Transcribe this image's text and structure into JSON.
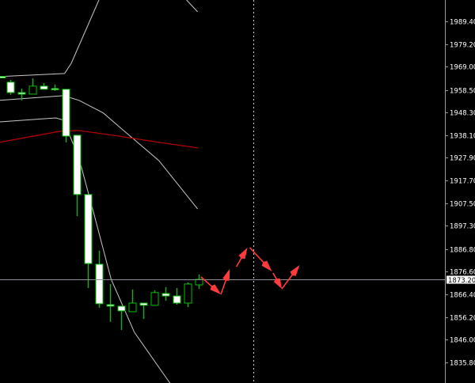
{
  "chart_data": {
    "type": "candlestick",
    "title": "",
    "ylim": [
      1826.5,
      1999.0
    ],
    "y_ticks": [
      "1989.40",
      "1979.20",
      "1969.00",
      "1958.50",
      "1948.30",
      "1938.10",
      "1927.90",
      "1917.70",
      "1907.50",
      "1897.30",
      "1886.80",
      "1876.60",
      "1866.40",
      "1856.20",
      "1846.00",
      "1835.80"
    ],
    "current_price": "1873.20",
    "colors": {
      "background": "#000000",
      "candle_outline": "#00c000",
      "bear_body": "#ffffff",
      "bull_body": "#000000",
      "bands": "#c8c8c8",
      "ma": "#b00000",
      "arrows": "#ff3b3b",
      "grid_line": "#8a8f99",
      "axis_text": "#ffffff"
    },
    "candles": [
      {
        "bar": -0.8,
        "o": 1964.6,
        "h": 1964.6,
        "l": 1963.8,
        "c": 1963.9
      },
      {
        "bar": 0,
        "o": 1962.0,
        "h": 1963.0,
        "l": 1956.3,
        "c": 1957.3
      },
      {
        "bar": 1,
        "o": 1957.3,
        "h": 1959.1,
        "l": 1953.8,
        "c": 1956.6
      },
      {
        "bar": 2,
        "o": 1956.6,
        "h": 1963.7,
        "l": 1956.6,
        "c": 1960.2
      },
      {
        "bar": 3,
        "o": 1960.2,
        "h": 1961.6,
        "l": 1958.8,
        "c": 1958.8
      },
      {
        "bar": 4,
        "o": 1959.1,
        "h": 1960.9,
        "l": 1958.0,
        "c": 1958.8
      },
      {
        "bar": 5,
        "o": 1958.8,
        "h": 1958.8,
        "l": 1934.9,
        "c": 1937.7
      },
      {
        "bar": 6,
        "o": 1938.1,
        "h": 1938.1,
        "l": 1901.7,
        "c": 1911.4
      },
      {
        "bar": 7,
        "o": 1911.4,
        "h": 1911.4,
        "l": 1869.3,
        "c": 1880.3
      },
      {
        "bar": 8,
        "o": 1880.0,
        "h": 1886.1,
        "l": 1860.4,
        "c": 1862.2
      },
      {
        "bar": 9,
        "o": 1861.8,
        "h": 1871.1,
        "l": 1854.0,
        "c": 1861.1
      },
      {
        "bar": 10,
        "o": 1861.1,
        "h": 1861.1,
        "l": 1850.4,
        "c": 1859.0
      },
      {
        "bar": 11,
        "o": 1858.6,
        "h": 1868.6,
        "l": 1858.6,
        "c": 1862.5
      },
      {
        "bar": 12,
        "o": 1862.5,
        "h": 1862.5,
        "l": 1855.4,
        "c": 1861.5
      },
      {
        "bar": 13,
        "o": 1861.5,
        "h": 1868.2,
        "l": 1861.5,
        "c": 1867.2
      },
      {
        "bar": 14,
        "o": 1866.8,
        "h": 1869.7,
        "l": 1863.6,
        "c": 1865.7
      },
      {
        "bar": 15,
        "o": 1865.7,
        "h": 1869.3,
        "l": 1861.8,
        "c": 1862.5
      },
      {
        "bar": 16,
        "o": 1862.5,
        "h": 1871.8,
        "l": 1860.7,
        "c": 1871.1
      },
      {
        "bar": 17,
        "o": 1870.7,
        "h": 1875.4,
        "l": 1868.9,
        "c": 1873.2
      }
    ],
    "indicators": [
      {
        "kind": "upper-band",
        "color": "#c8c8c8",
        "points": [
          [
            -1,
            1964.5
          ],
          [
            4.9,
            1965.9
          ],
          [
            5.5,
            1970.5
          ],
          [
            8.0,
            1999.0
          ]
        ]
      },
      {
        "kind": "upper-band-2",
        "color": "#c8c8c8",
        "points": [
          [
            15.9,
            1999.0
          ],
          [
            16.9,
            1993.7
          ]
        ]
      },
      {
        "kind": "middle-band",
        "color": "#c8c8c8",
        "points": [
          [
            -1,
            1953.8
          ],
          [
            4.8,
            1955.9
          ],
          [
            6.2,
            1953.8
          ],
          [
            8.4,
            1948.1
          ],
          [
            9.8,
            1942.0
          ],
          [
            13.4,
            1926.7
          ],
          [
            16.9,
            1904.9
          ]
        ]
      },
      {
        "kind": "lower-band",
        "color": "#c8c8c8",
        "points": [
          [
            -1,
            1944.1
          ],
          [
            4.1,
            1945.9
          ],
          [
            4.8,
            1944.9
          ],
          [
            6.2,
            1927.7
          ],
          [
            7.6,
            1901.7
          ],
          [
            9.1,
            1873.2
          ],
          [
            11.2,
            1849.3
          ],
          [
            14.4,
            1826.5
          ]
        ]
      },
      {
        "kind": "moving-average",
        "color": "#b00000",
        "points": [
          [
            -1,
            1934.9
          ],
          [
            4.5,
            1939.9
          ],
          [
            6.2,
            1940.2
          ],
          [
            9.8,
            1937.7
          ],
          [
            13.4,
            1934.9
          ],
          [
            16.9,
            1932.4
          ]
        ]
      }
    ],
    "arrows": [
      {
        "from": [
          17.2,
          1874.3
        ],
        "to": [
          19.0,
          1866.4
        ]
      },
      {
        "from": [
          19.0,
          1866.4
        ],
        "to": [
          19.8,
          1877.9
        ]
      },
      {
        "from": [
          20.4,
          1878.9
        ],
        "to": [
          21.4,
          1887.5
        ]
      },
      {
        "from": [
          21.6,
          1887.5
        ],
        "to": [
          23.6,
          1876.8
        ]
      },
      {
        "from": [
          23.7,
          1876.1
        ],
        "to": [
          24.5,
          1868.9
        ]
      },
      {
        "from": [
          24.5,
          1868.9
        ],
        "to": [
          26.1,
          1879.6
        ]
      }
    ],
    "vertical_marker_bar": 21.9,
    "grid": false
  }
}
